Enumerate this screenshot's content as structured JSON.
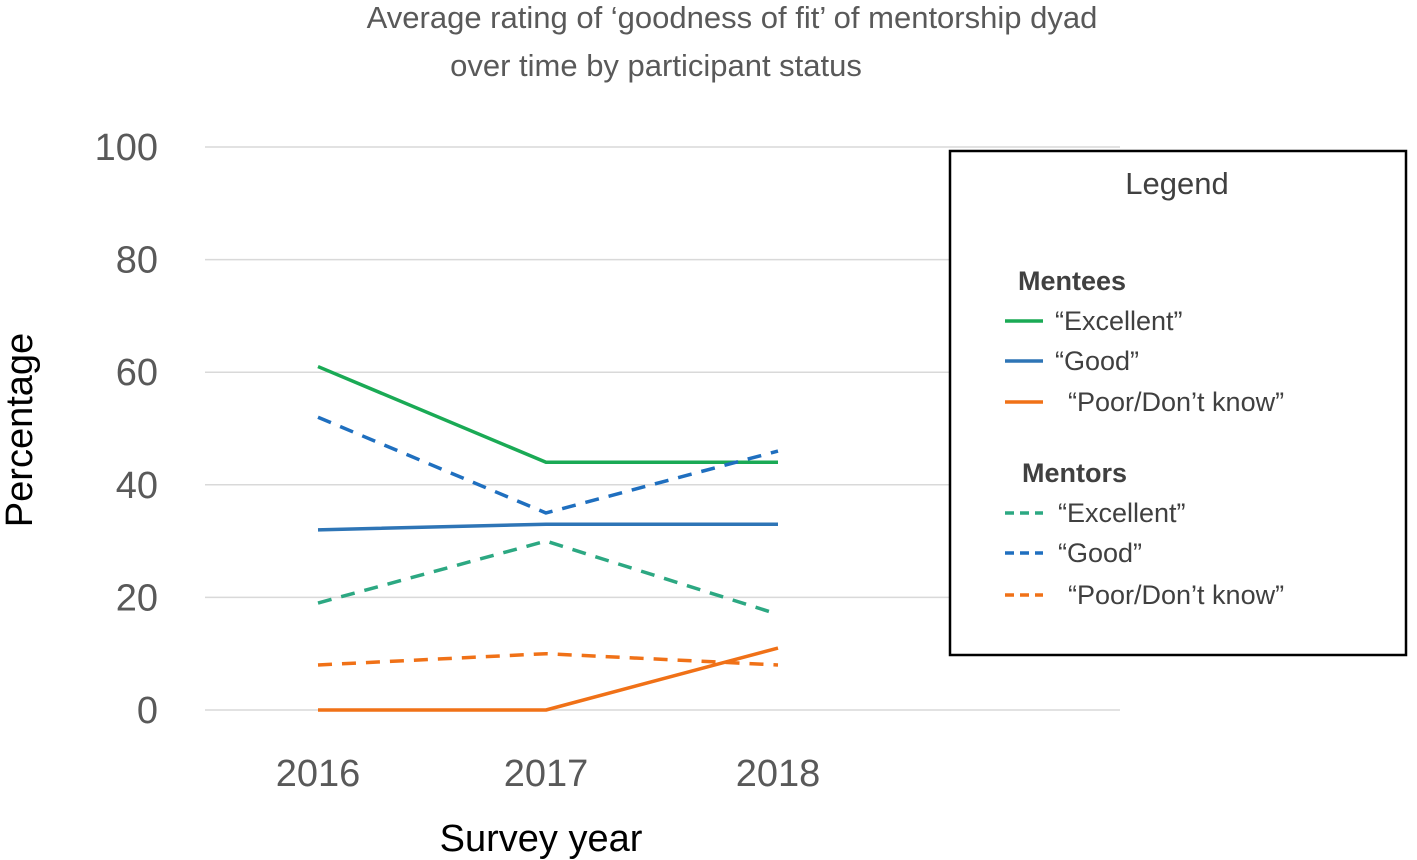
{
  "chart_data": {
    "type": "line",
    "title_lines": [
      "Average rating of ‘goodness of fit’ of mentorship dyad",
      "over time by participant status"
    ],
    "xlabel": "Survey year",
    "ylabel": "Percentage",
    "categories": [
      "2016",
      "2017",
      "2018"
    ],
    "ylim": [
      0,
      100
    ],
    "yticks": [
      "0",
      "20",
      "40",
      "60",
      "80",
      "100"
    ],
    "grid": true,
    "legend": {
      "title": "Legend",
      "placement": "right",
      "groups": [
        {
          "name": "Mentees",
          "items": [
            {
              "label": "“Excellent”",
              "series": 0
            },
            {
              "label": "“Good”",
              "series": 1
            },
            {
              "label": "“Poor/Don’t know”",
              "series": 2
            }
          ]
        },
        {
          "name": "Mentors",
          "items": [
            {
              "label": "“Excellent”",
              "series": 3
            },
            {
              "label": "“Good”",
              "series": 4
            },
            {
              "label": "“Poor/Don’t know”",
              "series": 5
            }
          ]
        }
      ]
    },
    "series": [
      {
        "name": "Mentees Excellent",
        "values": [
          61,
          44,
          44
        ],
        "color": "#1aaa55",
        "dashed": false
      },
      {
        "name": "Mentees Good",
        "values": [
          32,
          33,
          33
        ],
        "color": "#2e75b6",
        "dashed": false
      },
      {
        "name": "Mentees Poor/Don't know",
        "values": [
          0,
          0,
          11
        ],
        "color": "#f07117",
        "dashed": false
      },
      {
        "name": "Mentors Excellent",
        "values": [
          19,
          30,
          17
        ],
        "color": "#2ca882",
        "dashed": true
      },
      {
        "name": "Mentors Good",
        "values": [
          52,
          35,
          46
        ],
        "color": "#1f6fbf",
        "dashed": true
      },
      {
        "name": "Mentors Poor/Don't know",
        "values": [
          8,
          10,
          8
        ],
        "color": "#f07117",
        "dashed": true
      }
    ]
  }
}
